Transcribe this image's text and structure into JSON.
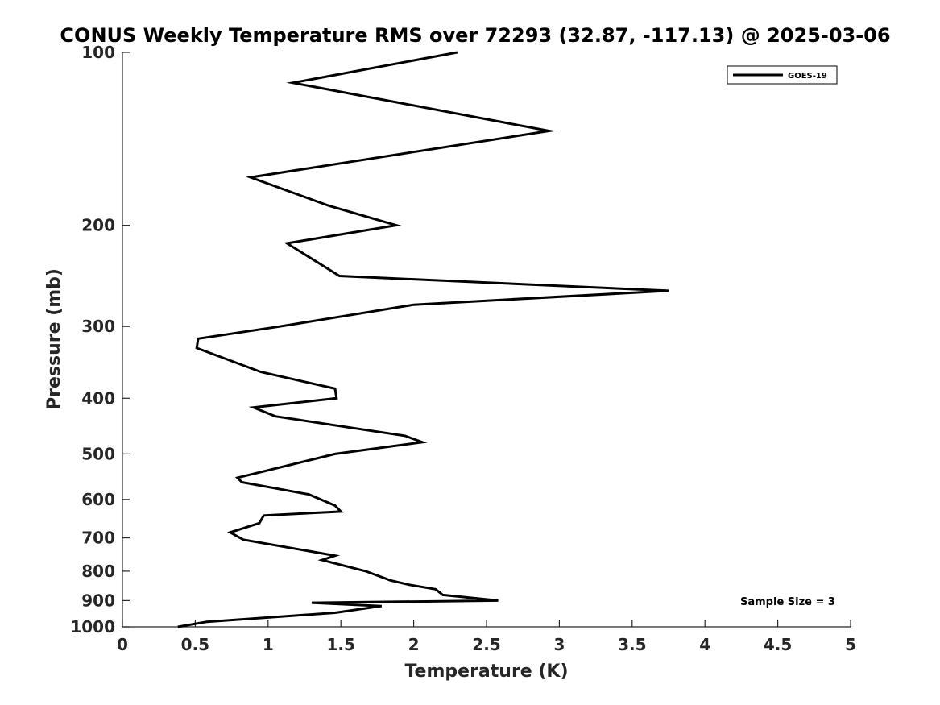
{
  "chart_data": {
    "type": "line",
    "title": "CONUS Weekly Temperature RMS over 72293 (32.87, -117.13) @ 2025-03-06",
    "xlabel": "Temperature (K)",
    "ylabel": "Pressure (mb)",
    "xlim": [
      0,
      5
    ],
    "ylim": [
      100,
      1000
    ],
    "y_scale": "log",
    "y_reversed": true,
    "grid": false,
    "legend_position": "top-right",
    "x_ticks": [
      "0",
      "0.5",
      "1",
      "1.5",
      "2",
      "2.5",
      "3",
      "3.5",
      "4",
      "4.5",
      "5"
    ],
    "y_ticks": [
      "100",
      "200",
      "300",
      "400",
      "500",
      "600",
      "700",
      "800",
      "900",
      "1000"
    ],
    "annotation": "Sample Size = 3",
    "series": [
      {
        "name": "GOES-19",
        "color": "#000000",
        "x": [
          2.3,
          1.17,
          2.93,
          0.88,
          1.42,
          1.88,
          1.13,
          1.49,
          3.75,
          2.0,
          1.08,
          0.52,
          0.51,
          0.95,
          1.46,
          1.47,
          0.9,
          1.05,
          1.94,
          2.06,
          1.46,
          0.79,
          0.82,
          1.28,
          1.46,
          1.5,
          0.97,
          0.94,
          0.74,
          0.83,
          1.46,
          1.37,
          1.67,
          1.84,
          1.97,
          2.15,
          2.2,
          2.58,
          1.3,
          1.78,
          1.46,
          0.58,
          0.38
        ],
        "y": [
          100,
          113,
          137,
          165,
          185,
          200,
          215,
          245,
          260,
          275,
          300,
          315,
          327,
          360,
          385,
          400,
          415,
          430,
          465,
          477,
          500,
          550,
          560,
          588,
          615,
          630,
          640,
          660,
          685,
          705,
          752,
          765,
          800,
          830,
          845,
          860,
          880,
          900,
          908,
          920,
          945,
          980,
          1000
        ]
      }
    ]
  }
}
